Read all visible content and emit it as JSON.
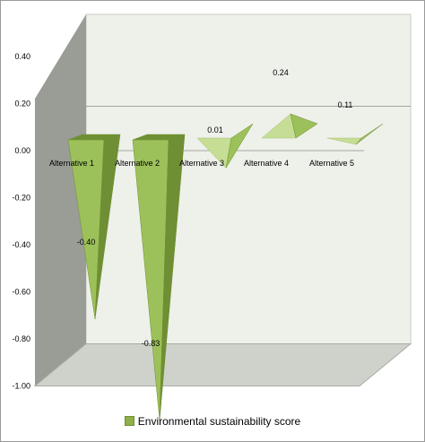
{
  "chart_data": {
    "type": "bar",
    "shape": "3d-pyramid",
    "categories": [
      "Alternative 1",
      "Alternative 2",
      "Alternative 3",
      "Alternative 4",
      "Alternative 5"
    ],
    "series": [
      {
        "name": "Environmental sustainability score",
        "values": [
          -0.4,
          -0.83,
          0.01,
          0.24,
          0.11
        ]
      }
    ],
    "data_labels": [
      "-0.40",
      "-0.83",
      "0.01",
      "0.24",
      "0.11"
    ],
    "yticks": [
      "0.40",
      "0.20",
      "0.00",
      "-0.20",
      "-0.40",
      "-0.60",
      "-0.80",
      "-1.00"
    ],
    "ylim": [
      -1.0,
      0.4
    ],
    "legend_position": "bottom",
    "grid": true,
    "colors": {
      "bar": "#9cc15a",
      "bar_dark": "#6e8f33",
      "bar_light": "#c6dd96",
      "wall": "#eef0ea",
      "side_wall": "#9a9d96",
      "floor": "#cfd1cb"
    }
  }
}
